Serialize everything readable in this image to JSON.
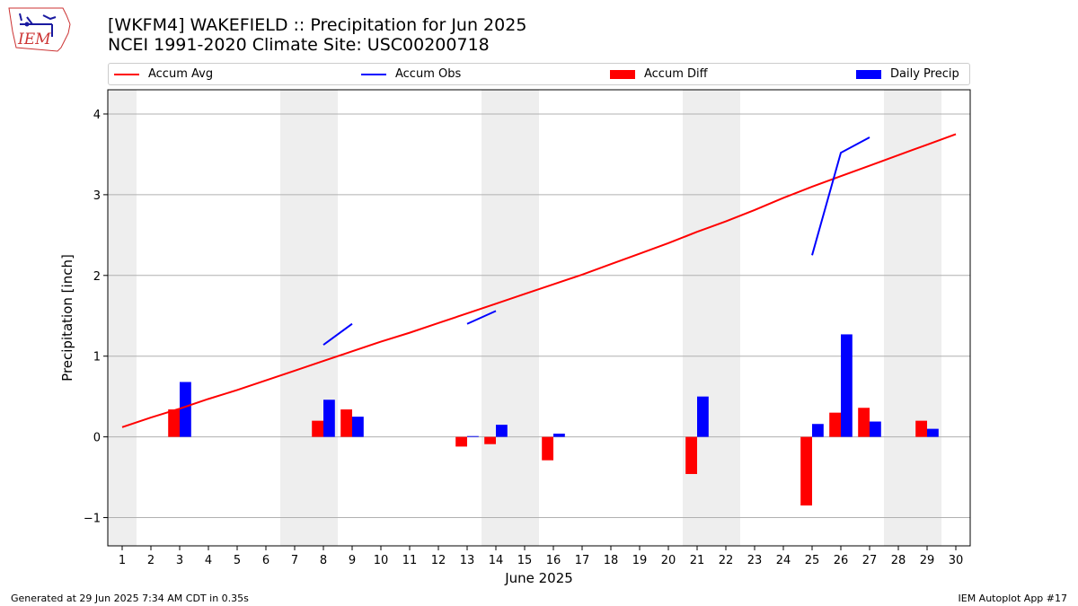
{
  "header": {
    "title_line1": "[WKFM4] WAKEFIELD :: Precipitation for Jun 2025",
    "title_line2": "NCEI 1991-2020 Climate Site: USC00200718",
    "logo_text": "IEM"
  },
  "legend": {
    "items": [
      {
        "label": "Accum Avg",
        "kind": "line",
        "color": "#ff0000"
      },
      {
        "label": "Accum Obs",
        "kind": "line",
        "color": "#0000ff"
      },
      {
        "label": "Accum Diff",
        "kind": "box",
        "color": "#ff0000"
      },
      {
        "label": "Daily Precip",
        "kind": "box",
        "color": "#0000ff"
      }
    ]
  },
  "footer": {
    "generated": "Generated at 29 Jun 2025 7:34 AM CDT in 0.35s",
    "app": "IEM Autoplot App #17"
  },
  "chart_data": {
    "type": "bar",
    "xlabel": "June 2025",
    "ylabel": "Precipitation [inch]",
    "xlim": [
      0.5,
      30.5
    ],
    "ylim": [
      -1.35,
      4.3
    ],
    "x_ticks": [
      1,
      2,
      3,
      4,
      5,
      6,
      7,
      8,
      9,
      10,
      11,
      12,
      13,
      14,
      15,
      16,
      17,
      18,
      19,
      20,
      21,
      22,
      23,
      24,
      25,
      26,
      27,
      28,
      29,
      30
    ],
    "y_ticks": [
      -1,
      0,
      1,
      2,
      3,
      4
    ],
    "y_tick_labels": [
      "−1",
      "0",
      "1",
      "2",
      "3",
      "4"
    ],
    "grid": "horizontal",
    "legend_position": "top",
    "weekend_shading": [
      [
        0.5,
        1.5
      ],
      [
        6.5,
        8.5
      ],
      [
        13.5,
        15.5
      ],
      [
        20.5,
        22.5
      ],
      [
        27.5,
        29.5
      ]
    ],
    "series": [
      {
        "name": "Accum Avg",
        "kind": "line",
        "color": "#ff0000",
        "x": [
          1,
          2,
          3,
          4,
          5,
          6,
          7,
          8,
          9,
          10,
          11,
          12,
          13,
          14,
          15,
          16,
          17,
          18,
          19,
          20,
          21,
          22,
          23,
          24,
          25,
          26,
          27,
          28,
          29,
          30
        ],
        "values": [
          0.12,
          0.24,
          0.35,
          0.47,
          0.58,
          0.7,
          0.82,
          0.94,
          1.06,
          1.18,
          1.29,
          1.41,
          1.53,
          1.65,
          1.77,
          1.89,
          2.01,
          2.14,
          2.27,
          2.4,
          2.54,
          2.67,
          2.81,
          2.96,
          3.1,
          3.23,
          3.36,
          3.49,
          3.62,
          3.75
        ]
      },
      {
        "name": "Accum Obs",
        "kind": "line-segments",
        "color": "#0000ff",
        "segments": [
          {
            "x": [
              8,
              9
            ],
            "values": [
              1.14,
              1.4
            ]
          },
          {
            "x": [
              13,
              14
            ],
            "values": [
              1.4,
              1.56
            ]
          },
          {
            "x": [
              25,
              26,
              27
            ],
            "values": [
              2.25,
              3.52,
              3.71
            ]
          }
        ]
      },
      {
        "name": "Accum Diff",
        "kind": "bar",
        "color": "#ff0000",
        "offset": -0.2,
        "x": [
          3,
          8,
          9,
          13,
          14,
          16,
          21,
          25,
          26,
          27,
          29
        ],
        "values": [
          0.34,
          0.2,
          0.34,
          -0.12,
          -0.09,
          -0.29,
          -0.46,
          -0.85,
          0.3,
          0.36,
          0.2
        ]
      },
      {
        "name": "Daily Precip",
        "kind": "bar",
        "color": "#0000ff",
        "offset": 0.2,
        "x": [
          3,
          8,
          9,
          13,
          14,
          16,
          21,
          25,
          26,
          27,
          29
        ],
        "values": [
          0.68,
          0.46,
          0.25,
          0.01,
          0.15,
          0.04,
          0.5,
          0.16,
          1.27,
          0.19,
          0.1
        ]
      }
    ]
  }
}
